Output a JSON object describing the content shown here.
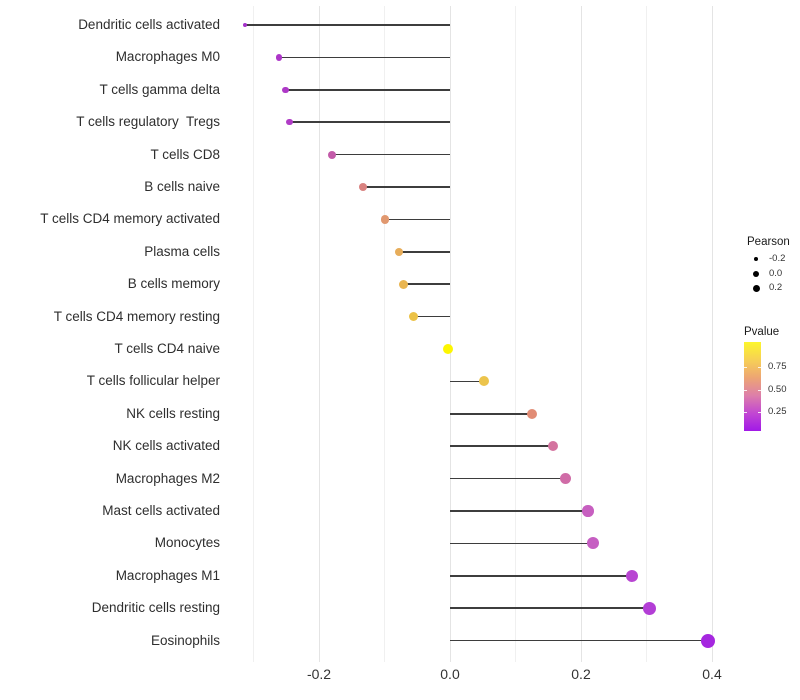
{
  "chart_data": {
    "type": "lollipop",
    "orientation": "horizontal",
    "title": "",
    "xlabel": "",
    "ylabel": "",
    "xlim": [
      -0.348,
      0.43
    ],
    "x_ticks": [
      "-0.2",
      "0.0",
      "0.2",
      "0.4"
    ],
    "x_tick_values": [
      -0.2,
      0.0,
      0.2,
      0.4
    ],
    "gridline_values": [
      -0.3,
      -0.2,
      -0.1,
      0.0,
      0.1,
      0.2,
      0.3,
      0.4
    ],
    "grid": "vertical-only",
    "points": [
      {
        "label": "Dendritic cells activated",
        "pearson": -0.313,
        "color": "#a432c9",
        "size": 4
      },
      {
        "label": "Macrophages M0",
        "pearson": -0.261,
        "color": "#ad36c8",
        "size": 6.5
      },
      {
        "label": "T cells gamma delta",
        "pearson": -0.251,
        "color": "#ae39c7",
        "size": 6.5
      },
      {
        "label": "T cells regulatory  Tregs",
        "pearson": -0.245,
        "color": "#b03cc6",
        "size": 6.5
      },
      {
        "label": "T cells CD8",
        "pearson": -0.18,
        "color": "#c35ba9",
        "size": 8
      },
      {
        "label": "B cells naive",
        "pearson": -0.133,
        "color": "#d98280",
        "size": 8
      },
      {
        "label": "T cells CD4 memory activated",
        "pearson": -0.099,
        "color": "#e1986f",
        "size": 8.5
      },
      {
        "label": "Plasma cells",
        "pearson": -0.078,
        "color": "#e7ad5a",
        "size": 8.5
      },
      {
        "label": "B cells memory",
        "pearson": -0.071,
        "color": "#e9b550",
        "size": 9
      },
      {
        "label": "T cells CD4 memory resting",
        "pearson": -0.055,
        "color": "#ecc247",
        "size": 9
      },
      {
        "label": "T cells CD4 naive",
        "pearson": -0.003,
        "color": "#fdf601",
        "size": 10
      },
      {
        "label": "T cells follicular helper",
        "pearson": 0.052,
        "color": "#ecc44c",
        "size": 10
      },
      {
        "label": "NK cells resting",
        "pearson": 0.125,
        "color": "#e18c75",
        "size": 10.5
      },
      {
        "label": "NK cells activated",
        "pearson": 0.157,
        "color": "#d4739f",
        "size": 10.5
      },
      {
        "label": "Macrophages M2",
        "pearson": 0.176,
        "color": "#d06ca7",
        "size": 11
      },
      {
        "label": "Mast cells activated",
        "pearson": 0.211,
        "color": "#c75fc0",
        "size": 11.5
      },
      {
        "label": "Monocytes",
        "pearson": 0.218,
        "color": "#c65ec2",
        "size": 12
      },
      {
        "label": "Macrophages M1",
        "pearson": 0.278,
        "color": "#b845d2",
        "size": 12.5
      },
      {
        "label": "Dendritic cells resting",
        "pearson": 0.304,
        "color": "#b33ed6",
        "size": 13
      },
      {
        "label": "Eosinophils",
        "pearson": 0.394,
        "color": "#a527df",
        "size": 14
      }
    ],
    "legend": {
      "position": "right",
      "size_legend": {
        "title": "Pearson",
        "entries": [
          {
            "label": "-0.2",
            "size": 4.5
          },
          {
            "label": "0.0",
            "size": 6
          },
          {
            "label": "0.2",
            "size": 7
          }
        ],
        "dot_color": "#000000"
      },
      "color_legend": {
        "title": "Pvalue",
        "tick_labels": [
          "0.75",
          "0.50",
          "0.25"
        ],
        "gradient_top_to_bottom": [
          "#fcf62c",
          "#f7d055",
          "#eda573",
          "#dd7fa9",
          "#c247d2",
          "#a119e7"
        ]
      }
    },
    "stem_color": "#3d3d3d",
    "background_color": "#ffffff"
  }
}
